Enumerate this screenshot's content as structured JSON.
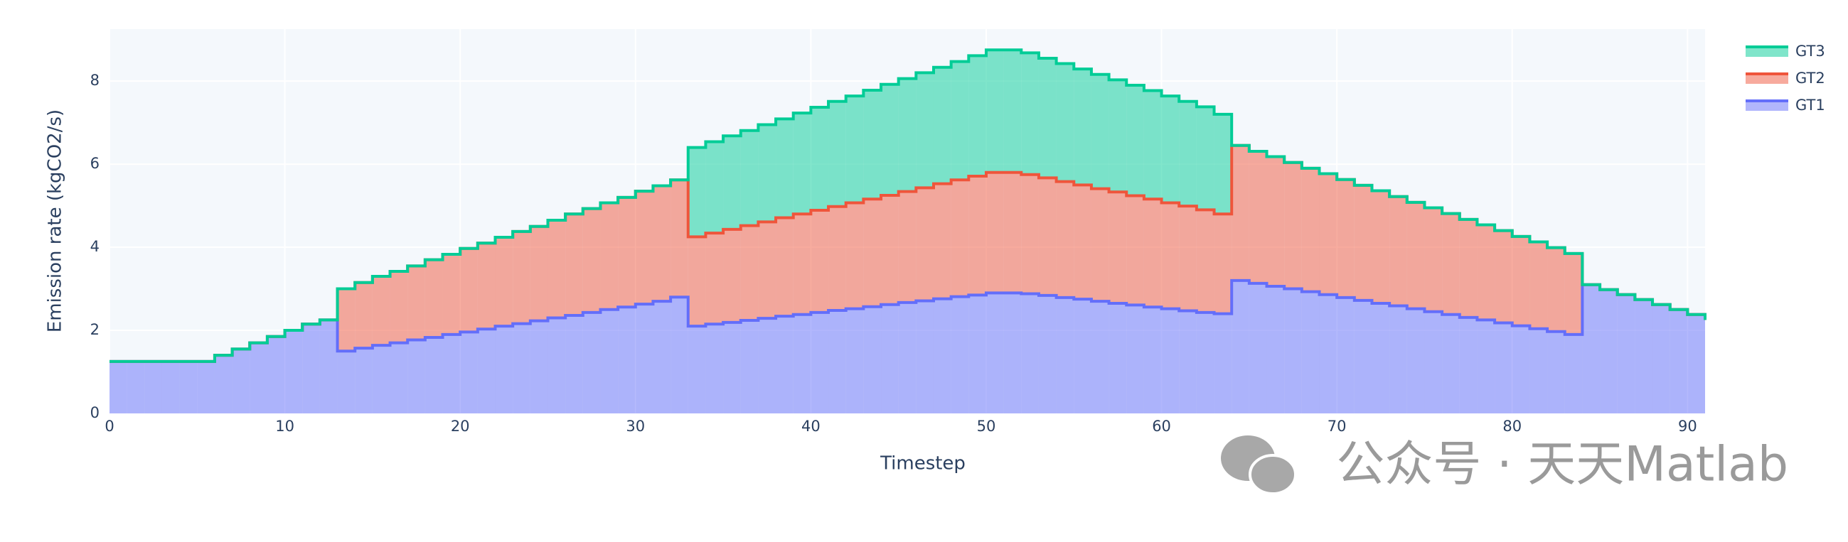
{
  "chart_data": {
    "type": "stacked_step_area",
    "xlabel": "Timestep",
    "ylabel": "Emission rate (kgCO2/s)",
    "watermark": "公众号 · 天天Matlab",
    "x": [
      0,
      1,
      2,
      3,
      4,
      5,
      6,
      7,
      8,
      9,
      10,
      11,
      12,
      13,
      14,
      15,
      16,
      17,
      18,
      19,
      20,
      21,
      22,
      23,
      24,
      25,
      26,
      27,
      28,
      29,
      30,
      31,
      32,
      33,
      34,
      35,
      36,
      37,
      38,
      39,
      40,
      41,
      42,
      43,
      44,
      45,
      46,
      47,
      48,
      49,
      50,
      51,
      52,
      53,
      54,
      55,
      56,
      57,
      58,
      59,
      60,
      61,
      62,
      63,
      64,
      65,
      66,
      67,
      68,
      69,
      70,
      71,
      72,
      73,
      74,
      75,
      76,
      77,
      78,
      79,
      80,
      81,
      82,
      83,
      84,
      85,
      86,
      87,
      88,
      89,
      90,
      91
    ],
    "series": [
      {
        "name": "GT1",
        "color": "#636efa",
        "values": [
          1.25,
          1.25,
          1.25,
          1.25,
          1.25,
          1.25,
          1.4,
          1.55,
          1.7,
          1.85,
          2.0,
          2.15,
          2.25,
          1.5,
          1.57,
          1.64,
          1.7,
          1.77,
          1.83,
          1.9,
          1.96,
          2.03,
          2.1,
          2.16,
          2.23,
          2.3,
          2.36,
          2.43,
          2.5,
          2.56,
          2.63,
          2.7,
          2.8,
          2.1,
          2.15,
          2.19,
          2.24,
          2.29,
          2.34,
          2.38,
          2.43,
          2.48,
          2.52,
          2.57,
          2.62,
          2.67,
          2.71,
          2.76,
          2.81,
          2.85,
          2.9,
          2.9,
          2.88,
          2.84,
          2.79,
          2.75,
          2.7,
          2.65,
          2.61,
          2.56,
          2.52,
          2.47,
          2.43,
          2.4,
          3.2,
          3.13,
          3.06,
          3.0,
          2.93,
          2.86,
          2.79,
          2.72,
          2.65,
          2.59,
          2.52,
          2.45,
          2.38,
          2.31,
          2.25,
          2.18,
          2.11,
          2.04,
          1.97,
          1.9,
          3.1,
          2.98,
          2.86,
          2.74,
          2.62,
          2.5,
          2.38,
          2.25
        ]
      },
      {
        "name": "GT2",
        "color": "#ef553b",
        "values": [
          0,
          0,
          0,
          0,
          0,
          0,
          0,
          0,
          0,
          0,
          0,
          0,
          0,
          1.5,
          1.58,
          1.66,
          1.72,
          1.78,
          1.87,
          1.93,
          2.01,
          2.07,
          2.14,
          2.22,
          2.27,
          2.35,
          2.44,
          2.5,
          2.57,
          2.64,
          2.72,
          2.78,
          2.82,
          2.15,
          2.19,
          2.24,
          2.28,
          2.32,
          2.37,
          2.42,
          2.46,
          2.5,
          2.55,
          2.59,
          2.63,
          2.67,
          2.72,
          2.77,
          2.81,
          2.86,
          2.9,
          2.9,
          2.87,
          2.83,
          2.79,
          2.75,
          2.71,
          2.68,
          2.63,
          2.6,
          2.55,
          2.52,
          2.47,
          2.4,
          3.25,
          3.18,
          3.12,
          3.04,
          2.97,
          2.91,
          2.84,
          2.77,
          2.71,
          2.63,
          2.56,
          2.5,
          2.43,
          2.36,
          2.29,
          2.22,
          2.15,
          2.09,
          2.02,
          1.95,
          0,
          0,
          0,
          0,
          0,
          0,
          0,
          0
        ]
      },
      {
        "name": "GT3",
        "color": "#00cc96",
        "values": [
          0,
          0,
          0,
          0,
          0,
          0,
          0,
          0,
          0,
          0,
          0,
          0,
          0,
          0,
          0,
          0,
          0,
          0,
          0,
          0,
          0,
          0,
          0,
          0,
          0,
          0,
          0,
          0,
          0,
          0,
          0,
          0,
          0,
          2.15,
          2.2,
          2.25,
          2.29,
          2.34,
          2.38,
          2.43,
          2.48,
          2.53,
          2.57,
          2.62,
          2.67,
          2.72,
          2.77,
          2.8,
          2.85,
          2.9,
          2.95,
          2.95,
          2.93,
          2.88,
          2.84,
          2.79,
          2.75,
          2.7,
          2.66,
          2.61,
          2.57,
          2.52,
          2.48,
          2.4,
          0,
          0,
          0,
          0,
          0,
          0,
          0,
          0,
          0,
          0,
          0,
          0,
          0,
          0,
          0,
          0,
          0,
          0,
          0,
          0,
          0,
          0,
          0,
          0,
          0,
          0,
          0,
          0
        ]
      }
    ],
    "xlim": [
      0,
      91
    ],
    "xticks": [
      0,
      10,
      20,
      30,
      40,
      50,
      60,
      70,
      80,
      90
    ],
    "ylim": [
      0,
      9.25
    ],
    "yticks": [
      0,
      2,
      4,
      6,
      8
    ],
    "grid": true,
    "legend": "top-right",
    "legend_order": "reversed"
  }
}
